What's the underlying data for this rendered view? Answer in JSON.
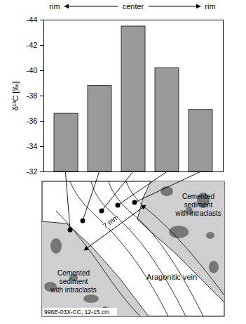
{
  "chart_data": {
    "type": "bar",
    "categories": [
      null,
      null,
      null,
      null,
      null
    ],
    "values": [
      -36.6,
      -38.8,
      -43.5,
      -40.2,
      -36.9
    ],
    "color": "#999999",
    "ylabel": "δ¹³C [‰]",
    "ylim": [
      -32,
      -44
    ],
    "yticks": [
      -32,
      -34,
      -36,
      -38,
      -40,
      -42,
      -44
    ],
    "annotations": [
      "rim",
      "center",
      "rim"
    ]
  },
  "diagram": {
    "sediment_labels": [
      [
        "Cemented",
        "sediment",
        "with intraclasts"
      ],
      [
        "Cemented",
        "sediment",
        "with intraclasts"
      ]
    ],
    "vein_label": "Aragonitic vein",
    "scale_label": "7 mm",
    "sample_label": "996E-03X-CC, 12-15 cm"
  }
}
